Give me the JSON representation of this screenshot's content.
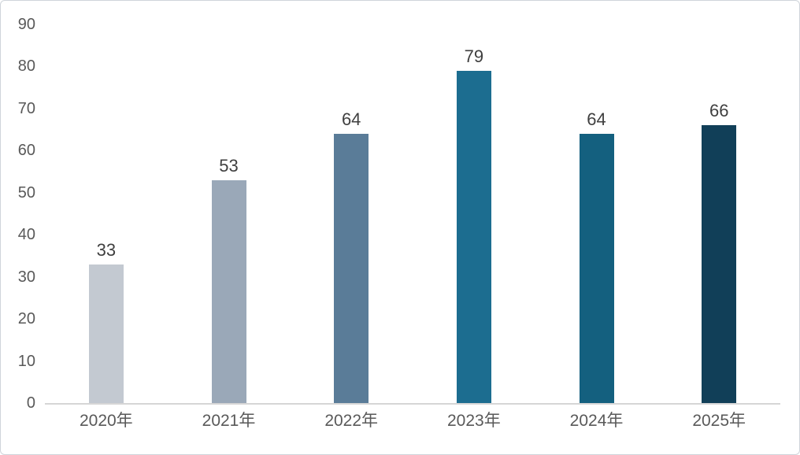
{
  "chart_data": {
    "type": "bar",
    "categories": [
      "2020年",
      "2021年",
      "2022年",
      "2023年",
      "2024年",
      "2025年"
    ],
    "values": [
      33,
      53,
      64,
      79,
      64,
      66
    ],
    "bar_colors": [
      "#c3c9d1",
      "#9aa8b8",
      "#5a7c98",
      "#1c6d90",
      "#14607f",
      "#113f58"
    ],
    "title": "",
    "xlabel": "",
    "ylabel": "",
    "ylim": [
      0,
      90
    ],
    "ytick_step": 10,
    "yticks": [
      0,
      10,
      20,
      30,
      40,
      50,
      60,
      70,
      80,
      90
    ],
    "grid": false,
    "legend": "none",
    "colors": {
      "value_label": "#3f3f3f",
      "axis_text": "#595959",
      "axis_line": "#d6d6d6",
      "background": "#ffffff",
      "border": "#cfd4da"
    }
  }
}
